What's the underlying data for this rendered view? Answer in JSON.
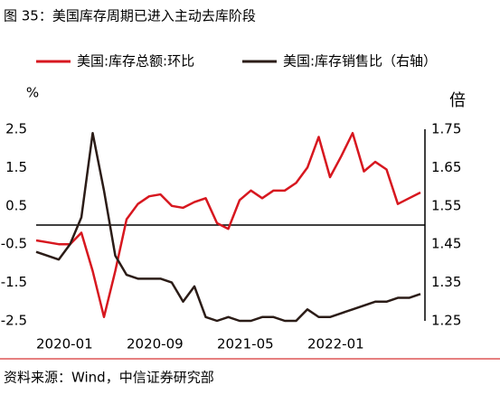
{
  "chart_data": {
    "type": "line",
    "title": "图 35：美国库存周期已进入主动去库阶段",
    "ylabel": "%",
    "y2label": "倍",
    "source": "资料来源：Wind，中信证券研究部",
    "categories": [
      "2020-01",
      null,
      null,
      null,
      null,
      null,
      null,
      null,
      "2020-09",
      null,
      null,
      null,
      null,
      null,
      null,
      null,
      "2021-05",
      null,
      null,
      null,
      null,
      null,
      null,
      null,
      "2022-01",
      null,
      null,
      null,
      null,
      null,
      null,
      null,
      null,
      null,
      null
    ],
    "series": [
      {
        "name": "美国:库存总额:环比",
        "color": "#d7171f",
        "axis": "y",
        "values": [
          -0.4,
          -0.45,
          -0.5,
          -0.5,
          -0.2,
          -1.2,
          -2.4,
          -1.2,
          0.15,
          0.55,
          0.75,
          0.8,
          0.5,
          0.45,
          0.6,
          0.7,
          0.05,
          -0.1,
          0.65,
          0.9,
          0.7,
          0.9,
          0.9,
          1.1,
          1.5,
          2.3,
          1.25,
          1.8,
          2.4,
          1.4,
          1.65,
          1.45,
          0.55,
          0.7,
          0.85
        ]
      },
      {
        "name": "美国:库存销售比（右轴）",
        "color": "#2b1c17",
        "axis": "y2",
        "values": [
          1.43,
          1.42,
          1.41,
          1.45,
          1.52,
          1.74,
          1.59,
          1.42,
          1.37,
          1.36,
          1.36,
          1.36,
          1.35,
          1.3,
          1.34,
          1.26,
          1.25,
          1.26,
          1.25,
          1.25,
          1.26,
          1.26,
          1.25,
          1.25,
          1.28,
          1.26,
          1.26,
          1.27,
          1.28,
          1.29,
          1.3,
          1.3,
          1.31,
          1.31,
          1.32
        ]
      }
    ],
    "ylim": [
      -2.5,
      2.5
    ],
    "yticks": [
      2.5,
      1.5,
      0.5,
      -0.5,
      -1.5,
      -2.5
    ],
    "y2lim": [
      1.25,
      1.75
    ],
    "y2ticks": [
      1.75,
      1.65,
      1.55,
      1.45,
      1.35,
      1.25
    ],
    "legend": "top"
  }
}
